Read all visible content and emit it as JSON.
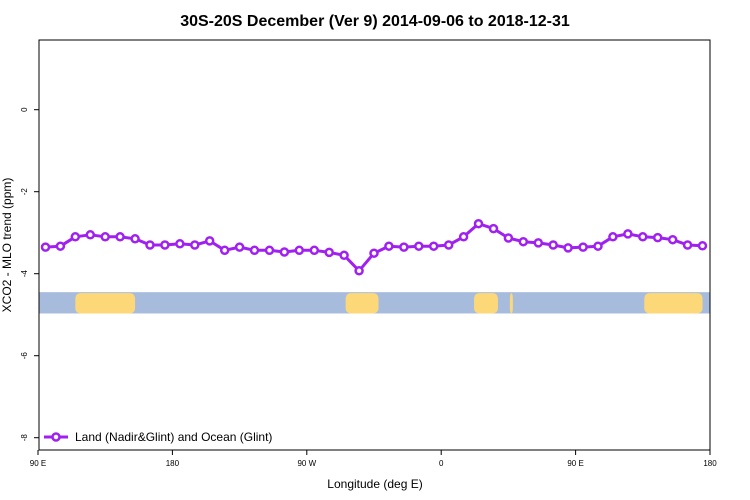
{
  "chart_data": {
    "type": "line",
    "title": "30S-20S December (Ver 9)   2014-09-06 to 2018-12-31",
    "xlabel": "Longitude (deg E)",
    "ylabel": "XCO2 - MLO trend (ppm)",
    "xlim": [
      90,
      480
    ],
    "ylim": [
      -8.3,
      1.7
    ],
    "xticks": [
      {
        "value": 90,
        "label": "90 E"
      },
      {
        "value": 180,
        "label": "180"
      },
      {
        "value": 270,
        "label": "90 W"
      },
      {
        "value": 360,
        "label": "0"
      },
      {
        "value": 450,
        "label": "90 E"
      },
      {
        "value": 540,
        "label": "180"
      }
    ],
    "yticks": [
      0,
      -2,
      -4,
      -6,
      -8
    ],
    "legend": {
      "position": "bottom-left",
      "label": "Land (Nadir&Glint) and Ocean (Glint)"
    },
    "series": [
      {
        "name": "Land (Nadir&Glint) and Ocean (Glint)",
        "color": "#a020f0",
        "x": [
          95,
          105,
          115,
          125,
          135,
          145,
          155,
          165,
          175,
          185,
          195,
          205,
          215,
          225,
          235,
          245,
          255,
          265,
          275,
          285,
          295,
          305,
          315,
          325,
          335,
          345,
          355,
          365,
          375,
          385,
          395,
          405,
          415,
          425,
          435,
          445,
          455,
          465,
          475,
          485,
          495,
          505,
          515,
          525,
          535
        ],
        "y": [
          -3.35,
          -3.33,
          -3.1,
          -3.05,
          -3.1,
          -3.1,
          -3.15,
          -3.3,
          -3.3,
          -3.27,
          -3.3,
          -3.2,
          -3.43,
          -3.35,
          -3.43,
          -3.43,
          -3.47,
          -3.43,
          -3.43,
          -3.48,
          -3.55,
          -3.93,
          -3.5,
          -3.33,
          -3.35,
          -3.33,
          -3.33,
          -3.3,
          -3.1,
          -2.78,
          -2.9,
          -3.13,
          -3.22,
          -3.25,
          -3.3,
          -3.37,
          -3.35,
          -3.33,
          -3.1,
          -3.03,
          -3.1,
          -3.12,
          -3.17,
          -3.3,
          -3.32
        ]
      }
    ],
    "land_mask": {
      "y_range": [
        -4.45,
        -4.97
      ],
      "ocean_color": "#a7bcdc",
      "land_color": "#fcd878",
      "land_segments": [
        [
          115,
          155
        ],
        [
          296,
          318
        ],
        [
          382,
          398
        ],
        [
          406,
          408
        ],
        [
          496,
          535
        ]
      ]
    }
  }
}
